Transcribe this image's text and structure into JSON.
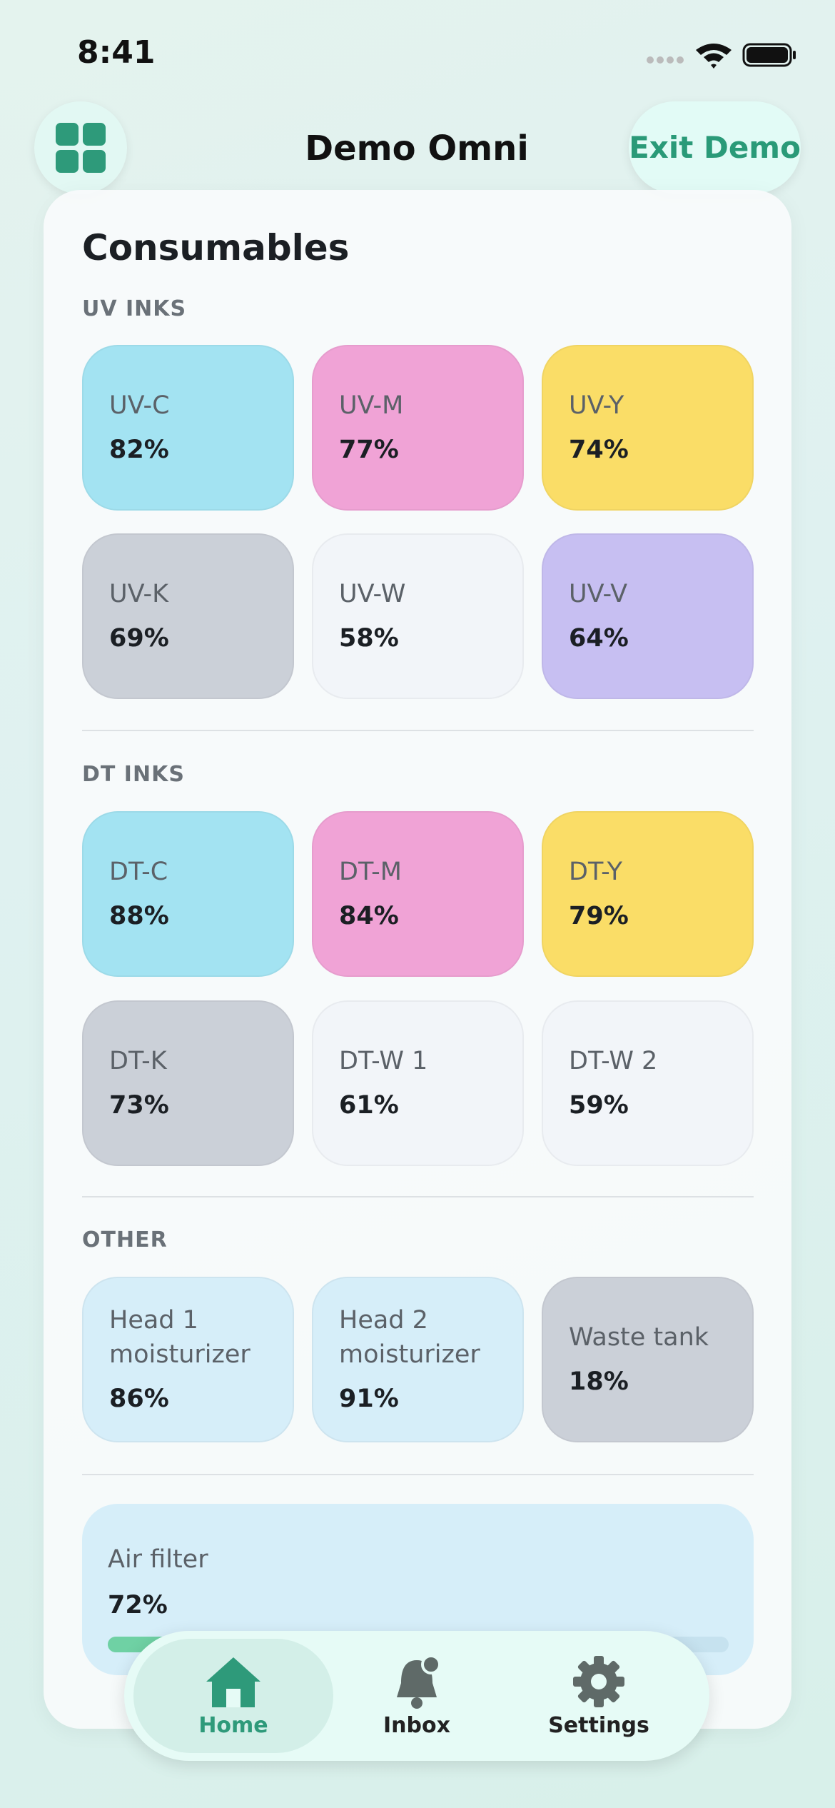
{
  "status_bar": {
    "time": "8:41"
  },
  "header": {
    "title": "Demo Omni",
    "exit_button": "Exit Demo"
  },
  "panel": {
    "title": "Consumables",
    "sections": [
      {
        "title": "UV INKS",
        "items": [
          {
            "label": "UV-C",
            "value": "82%",
            "color": "#a3e3f2"
          },
          {
            "label": "UV-M",
            "value": "77%",
            "color": "#f0a3d6"
          },
          {
            "label": "UV-Y",
            "value": "74%",
            "color": "#fadd67"
          },
          {
            "label": "UV-K",
            "value": "69%",
            "color": "#cbd0d8"
          },
          {
            "label": "UV-W",
            "value": "58%",
            "color": "#f2f5f9"
          },
          {
            "label": "UV-V",
            "value": "64%",
            "color": "#c7bff2"
          }
        ]
      },
      {
        "title": "DT INKS",
        "items": [
          {
            "label": "DT-C",
            "value": "88%",
            "color": "#a3e3f2"
          },
          {
            "label": "DT-M",
            "value": "84%",
            "color": "#f0a3d6"
          },
          {
            "label": "DT-Y",
            "value": "79%",
            "color": "#fadd67"
          },
          {
            "label": "DT-K",
            "value": "73%",
            "color": "#cbd0d8"
          },
          {
            "label": "DT-W 1",
            "value": "61%",
            "color": "#f2f5f9"
          },
          {
            "label": "DT-W 2",
            "value": "59%",
            "color": "#f2f5f9"
          }
        ]
      },
      {
        "title": "OTHER",
        "items": [
          {
            "label": "Head 1 moisturizer",
            "value": "86%",
            "color": "#d6eef9"
          },
          {
            "label": "Head 2 moisturizer",
            "value": "91%",
            "color": "#d6eef9"
          },
          {
            "label": "Waste tank",
            "value": "18%",
            "color": "#cbd0d8"
          }
        ]
      }
    ],
    "air_filter": {
      "label": "Air filter",
      "value": 72,
      "value_label": "72%"
    }
  },
  "tab_bar": {
    "tabs": [
      {
        "label": "Home",
        "selected": true
      },
      {
        "label": "Inbox",
        "selected": false
      },
      {
        "label": "Settings",
        "selected": false
      }
    ]
  }
}
